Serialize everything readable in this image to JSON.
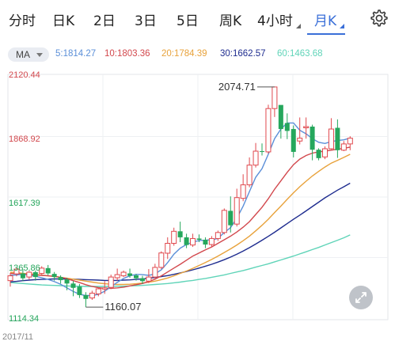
{
  "tabs": [
    {
      "label": "分时",
      "active": false
    },
    {
      "label": "日K",
      "active": false
    },
    {
      "label": "2日",
      "active": false
    },
    {
      "label": "3日",
      "active": false
    },
    {
      "label": "5日",
      "active": false
    },
    {
      "label": "周K",
      "active": false
    },
    {
      "label": "4小时",
      "active": false
    },
    {
      "label": "月K",
      "active": true
    }
  ],
  "ma": {
    "selector": "MA",
    "values": [
      {
        "text": "5:1814.27",
        "color": "#5b8fd8"
      },
      {
        "text": "10:1803.36",
        "color": "#d2484d"
      },
      {
        "text": "20:1784.39",
        "color": "#e8a23b"
      },
      {
        "text": "30:1662.57",
        "color": "#1e2c8f"
      },
      {
        "text": "60:1463.68",
        "color": "#5fd4b8"
      }
    ]
  },
  "price_axis": {
    "labels": [
      {
        "text": "2120.44",
        "color": "#d2484d"
      },
      {
        "text": "1868.92",
        "color": "#d2484d"
      },
      {
        "text": "1617.39",
        "color": "#23a55a"
      },
      {
        "text": "1365.86",
        "color": "#23a55a"
      },
      {
        "text": "1114.34",
        "color": "#23a55a"
      }
    ]
  },
  "annotations": {
    "high": "2074.71",
    "low": "1160.07"
  },
  "date_label": "2017/11",
  "colors": {
    "up": "#e0484d",
    "down": "#25a75c",
    "accent": "#3a6fd8"
  },
  "icons": {
    "settings": "gear-icon",
    "fullscreen": "expand-icon"
  },
  "chart_data": {
    "type": "candlestick",
    "ylim": [
      1114.34,
      2120.44
    ],
    "candles": [
      [
        1270,
        1290,
        1245,
        1302
      ],
      [
        1298,
        1318,
        1288,
        1322
      ],
      [
        1300,
        1280,
        1268,
        1316
      ],
      [
        1285,
        1305,
        1275,
        1310
      ],
      [
        1305,
        1285,
        1270,
        1312
      ],
      [
        1300,
        1322,
        1292,
        1330
      ],
      [
        1322,
        1300,
        1292,
        1335
      ],
      [
        1298,
        1285,
        1270,
        1306
      ],
      [
        1285,
        1272,
        1258,
        1292
      ],
      [
        1275,
        1258,
        1230,
        1282
      ],
      [
        1258,
        1240,
        1205,
        1268
      ],
      [
        1245,
        1210,
        1198,
        1256
      ],
      [
        1210,
        1194,
        1160.07,
        1222
      ],
      [
        1198,
        1218,
        1190,
        1228
      ],
      [
        1215,
        1236,
        1205,
        1242
      ],
      [
        1235,
        1240,
        1215,
        1268
      ],
      [
        1242,
        1285,
        1235,
        1295
      ],
      [
        1282,
        1295,
        1270,
        1320
      ],
      [
        1290,
        1305,
        1285,
        1312
      ],
      [
        1300,
        1290,
        1282,
        1320
      ],
      [
        1292,
        1280,
        1270,
        1298
      ],
      [
        1280,
        1268,
        1256,
        1290
      ],
      [
        1268,
        1285,
        1260,
        1318
      ],
      [
        1285,
        1325,
        1280,
        1340
      ],
      [
        1325,
        1385,
        1318,
        1392
      ],
      [
        1384,
        1425,
        1360,
        1450
      ],
      [
        1425,
        1475,
        1415,
        1490
      ],
      [
        1475,
        1450,
        1430,
        1515
      ],
      [
        1450,
        1418,
        1405,
        1465
      ],
      [
        1418,
        1445,
        1410,
        1465
      ],
      [
        1445,
        1440,
        1430,
        1462
      ],
      [
        1440,
        1420,
        1405,
        1450
      ],
      [
        1420,
        1445,
        1410,
        1455
      ],
      [
        1445,
        1470,
        1435,
        1478
      ],
      [
        1470,
        1562,
        1462,
        1570
      ],
      [
        1560,
        1500,
        1470,
        1620
      ],
      [
        1505,
        1615,
        1495,
        1652
      ],
      [
        1612,
        1668,
        1600,
        1712
      ],
      [
        1668,
        1750,
        1658,
        1782
      ],
      [
        1750,
        1808,
        1740,
        1842
      ],
      [
        1808,
        1805,
        1790,
        1840
      ],
      [
        1805,
        1985,
        1798,
        2001
      ],
      [
        1985,
        2074.71,
        1950,
        2074.71
      ],
      [
        2000,
        1900,
        1860,
        1998
      ],
      [
        1925,
        1892,
        1858,
        1965
      ],
      [
        1900,
        1805,
        1782,
        1915
      ],
      [
        1850,
        1862,
        1836,
        1948
      ],
      [
        1905,
        1910,
        1860,
        1948
      ],
      [
        1910,
        1814,
        1770,
        1918
      ],
      [
        1814,
        1779,
        1770,
        1820
      ],
      [
        1784,
        1818,
        1775,
        1828
      ],
      [
        1818,
        1900,
        1815,
        1945
      ],
      [
        1905,
        1812,
        1780,
        1940
      ],
      [
        1812,
        1838,
        1808,
        1850
      ],
      [
        1838,
        1862,
        1812,
        1870
      ]
    ],
    "ma_lines": [
      {
        "name": "MA5",
        "color": "#5b8fd8",
        "points": [
          1292,
          1294,
          1296,
          1293,
          1288,
          1282,
          1275,
          1266,
          1255,
          1240,
          1225,
          1213,
          1208,
          1208,
          1213,
          1226,
          1245,
          1263,
          1279,
          1290,
          1296,
          1295,
          1292,
          1298,
          1315,
          1345,
          1380,
          1405,
          1420,
          1430,
          1437,
          1438,
          1440,
          1445,
          1470,
          1490,
          1530,
          1580,
          1640,
          1700,
          1735,
          1795,
          1860,
          1900,
          1925,
          1925,
          1895,
          1880,
          1860,
          1845,
          1840,
          1848,
          1852,
          1855,
          1862
        ]
      },
      {
        "name": "MA10",
        "color": "#d2484d",
        "points": [
          1300,
          1298,
          1297,
          1296,
          1294,
          1292,
          1290,
          1288,
          1284,
          1278,
          1270,
          1262,
          1253,
          1246,
          1241,
          1238,
          1238,
          1240,
          1243,
          1248,
          1253,
          1258,
          1266,
          1276,
          1290,
          1306,
          1322,
          1338,
          1355,
          1372,
          1385,
          1398,
          1410,
          1425,
          1440,
          1455,
          1472,
          1492,
          1515,
          1545,
          1575,
          1610,
          1650,
          1685,
          1720,
          1752,
          1775,
          1790,
          1800,
          1805,
          1808,
          1812,
          1816,
          1820,
          1825
        ]
      },
      {
        "name": "MA20",
        "color": "#e8a23b",
        "points": [
          1305,
          1303,
          1300,
          1298,
          1296,
          1293,
          1290,
          1287,
          1284,
          1280,
          1276,
          1272,
          1268,
          1264,
          1260,
          1257,
          1255,
          1254,
          1254,
          1255,
          1257,
          1260,
          1264,
          1268,
          1274,
          1281,
          1290,
          1300,
          1310,
          1321,
          1333,
          1345,
          1358,
          1372,
          1387,
          1402,
          1418,
          1436,
          1455,
          1477,
          1500,
          1525,
          1553,
          1580,
          1608,
          1635,
          1660,
          1683,
          1705,
          1724,
          1742,
          1758,
          1770,
          1782,
          1795
        ]
      },
      {
        "name": "MA30",
        "color": "#1e2c8f",
        "points": [
          1265,
          1267,
          1270,
          1272,
          1274,
          1275,
          1276,
          1277,
          1277,
          1277,
          1276,
          1275,
          1274,
          1273,
          1272,
          1271,
          1271,
          1271,
          1272,
          1273,
          1275,
          1277,
          1280,
          1283,
          1287,
          1291,
          1296,
          1302,
          1308,
          1315,
          1322,
          1330,
          1338,
          1347,
          1357,
          1368,
          1380,
          1393,
          1407,
          1422,
          1438,
          1454,
          1471,
          1489,
          1507,
          1525,
          1542,
          1560,
          1578,
          1596,
          1614,
          1630,
          1646,
          1660,
          1675
        ]
      },
      {
        "name": "MA60",
        "color": "#5fd4b8",
        "points": [
          1262,
          1260,
          1258,
          1256,
          1254,
          1252,
          1251,
          1250,
          1249,
          1248,
          1247,
          1247,
          1246,
          1246,
          1246,
          1246,
          1246,
          1247,
          1247,
          1248,
          1249,
          1250,
          1252,
          1254,
          1256,
          1258,
          1261,
          1264,
          1268,
          1271,
          1275,
          1279,
          1284,
          1289,
          1294,
          1300,
          1306,
          1312,
          1319,
          1326,
          1333,
          1340,
          1348,
          1356,
          1364,
          1372,
          1381,
          1390,
          1399,
          1408,
          1418,
          1428,
          1438,
          1448,
          1460
        ]
      }
    ]
  }
}
